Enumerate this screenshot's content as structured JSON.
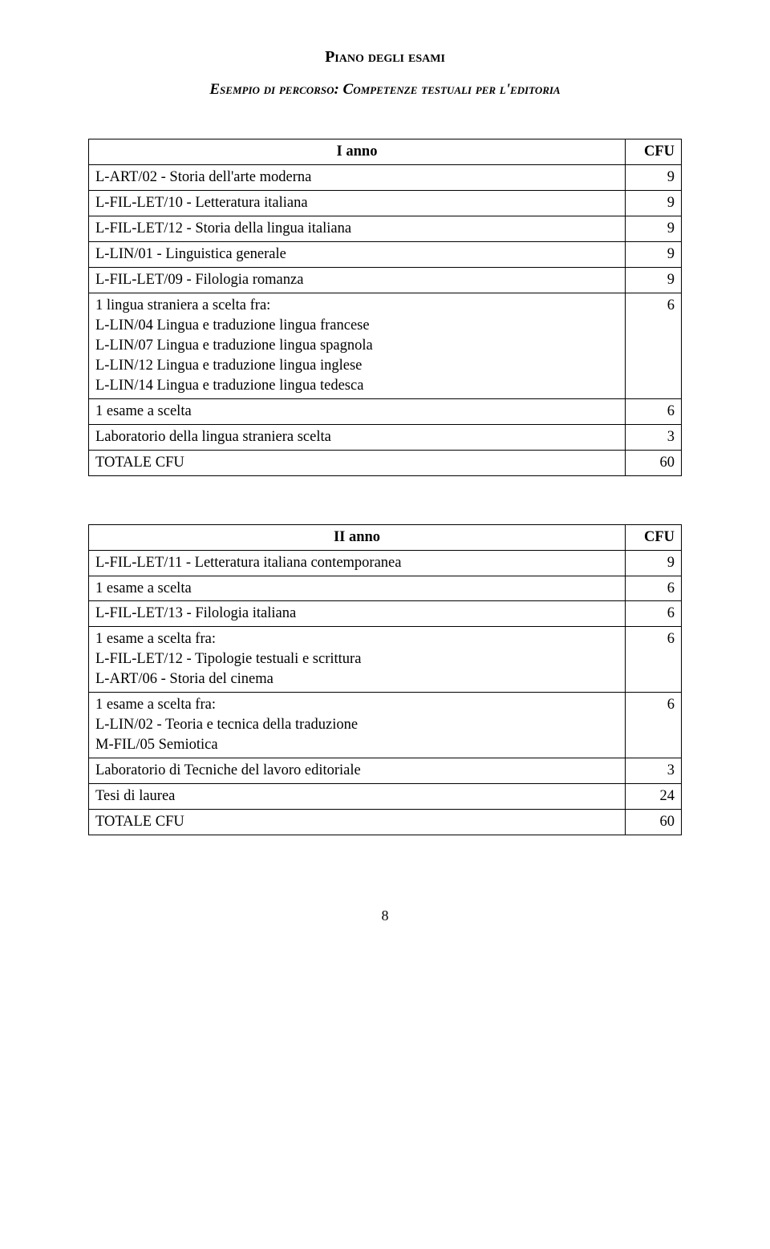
{
  "pageTitle": "Piano degli esami",
  "subtitle": "Esempio di percorso: Competenze testuali per l'editoria",
  "pageNumber": "8",
  "table1": {
    "headerLeft": "I anno",
    "headerRight": "CFU",
    "rows": [
      {
        "label": "L-ART/02 - Storia dell'arte moderna",
        "cfu": "9"
      },
      {
        "label": "L-FIL-LET/10 - Letteratura italiana",
        "cfu": "9"
      },
      {
        "label": "L-FIL-LET/12 - Storia della lingua italiana",
        "cfu": "9"
      },
      {
        "label": "L-LIN/01 - Linguistica generale",
        "cfu": "9"
      },
      {
        "label": "L-FIL-LET/09 - Filologia romanza",
        "cfu": "9"
      },
      {
        "label": "1 lingua straniera a scelta fra:\nL-LIN/04 Lingua e traduzione lingua francese\nL-LIN/07 Lingua e traduzione lingua spagnola\nL-LIN/12 Lingua e traduzione lingua inglese\nL-LIN/14 Lingua e traduzione lingua tedesca",
        "cfu": "6"
      },
      {
        "label": "1 esame a scelta",
        "cfu": "6"
      },
      {
        "label": "Laboratorio della lingua straniera scelta",
        "cfu": "3"
      },
      {
        "label": "TOTALE CFU",
        "cfu": "60"
      }
    ]
  },
  "table2": {
    "headerLeft": "II anno",
    "headerRight": "CFU",
    "rows": [
      {
        "label": "L-FIL-LET/11 - Letteratura italiana contemporanea",
        "cfu": "9"
      },
      {
        "label": "1 esame a scelta",
        "cfu": "6"
      },
      {
        "label": "L-FIL-LET/13 - Filologia italiana",
        "cfu": "6"
      },
      {
        "label": "1 esame a scelta fra:\nL-FIL-LET/12 - Tipologie testuali e scrittura\nL-ART/06 - Storia del cinema",
        "cfu": "6"
      },
      {
        "label": "1 esame a scelta fra:\nL-LIN/02 - Teoria e tecnica della traduzione\nM-FIL/05 Semiotica",
        "cfu": "6"
      },
      {
        "label": "Laboratorio di Tecniche del lavoro editoriale",
        "cfu": "3"
      },
      {
        "label": "Tesi di laurea",
        "cfu": "24"
      },
      {
        "label": "TOTALE CFU",
        "cfu": "60"
      }
    ]
  }
}
